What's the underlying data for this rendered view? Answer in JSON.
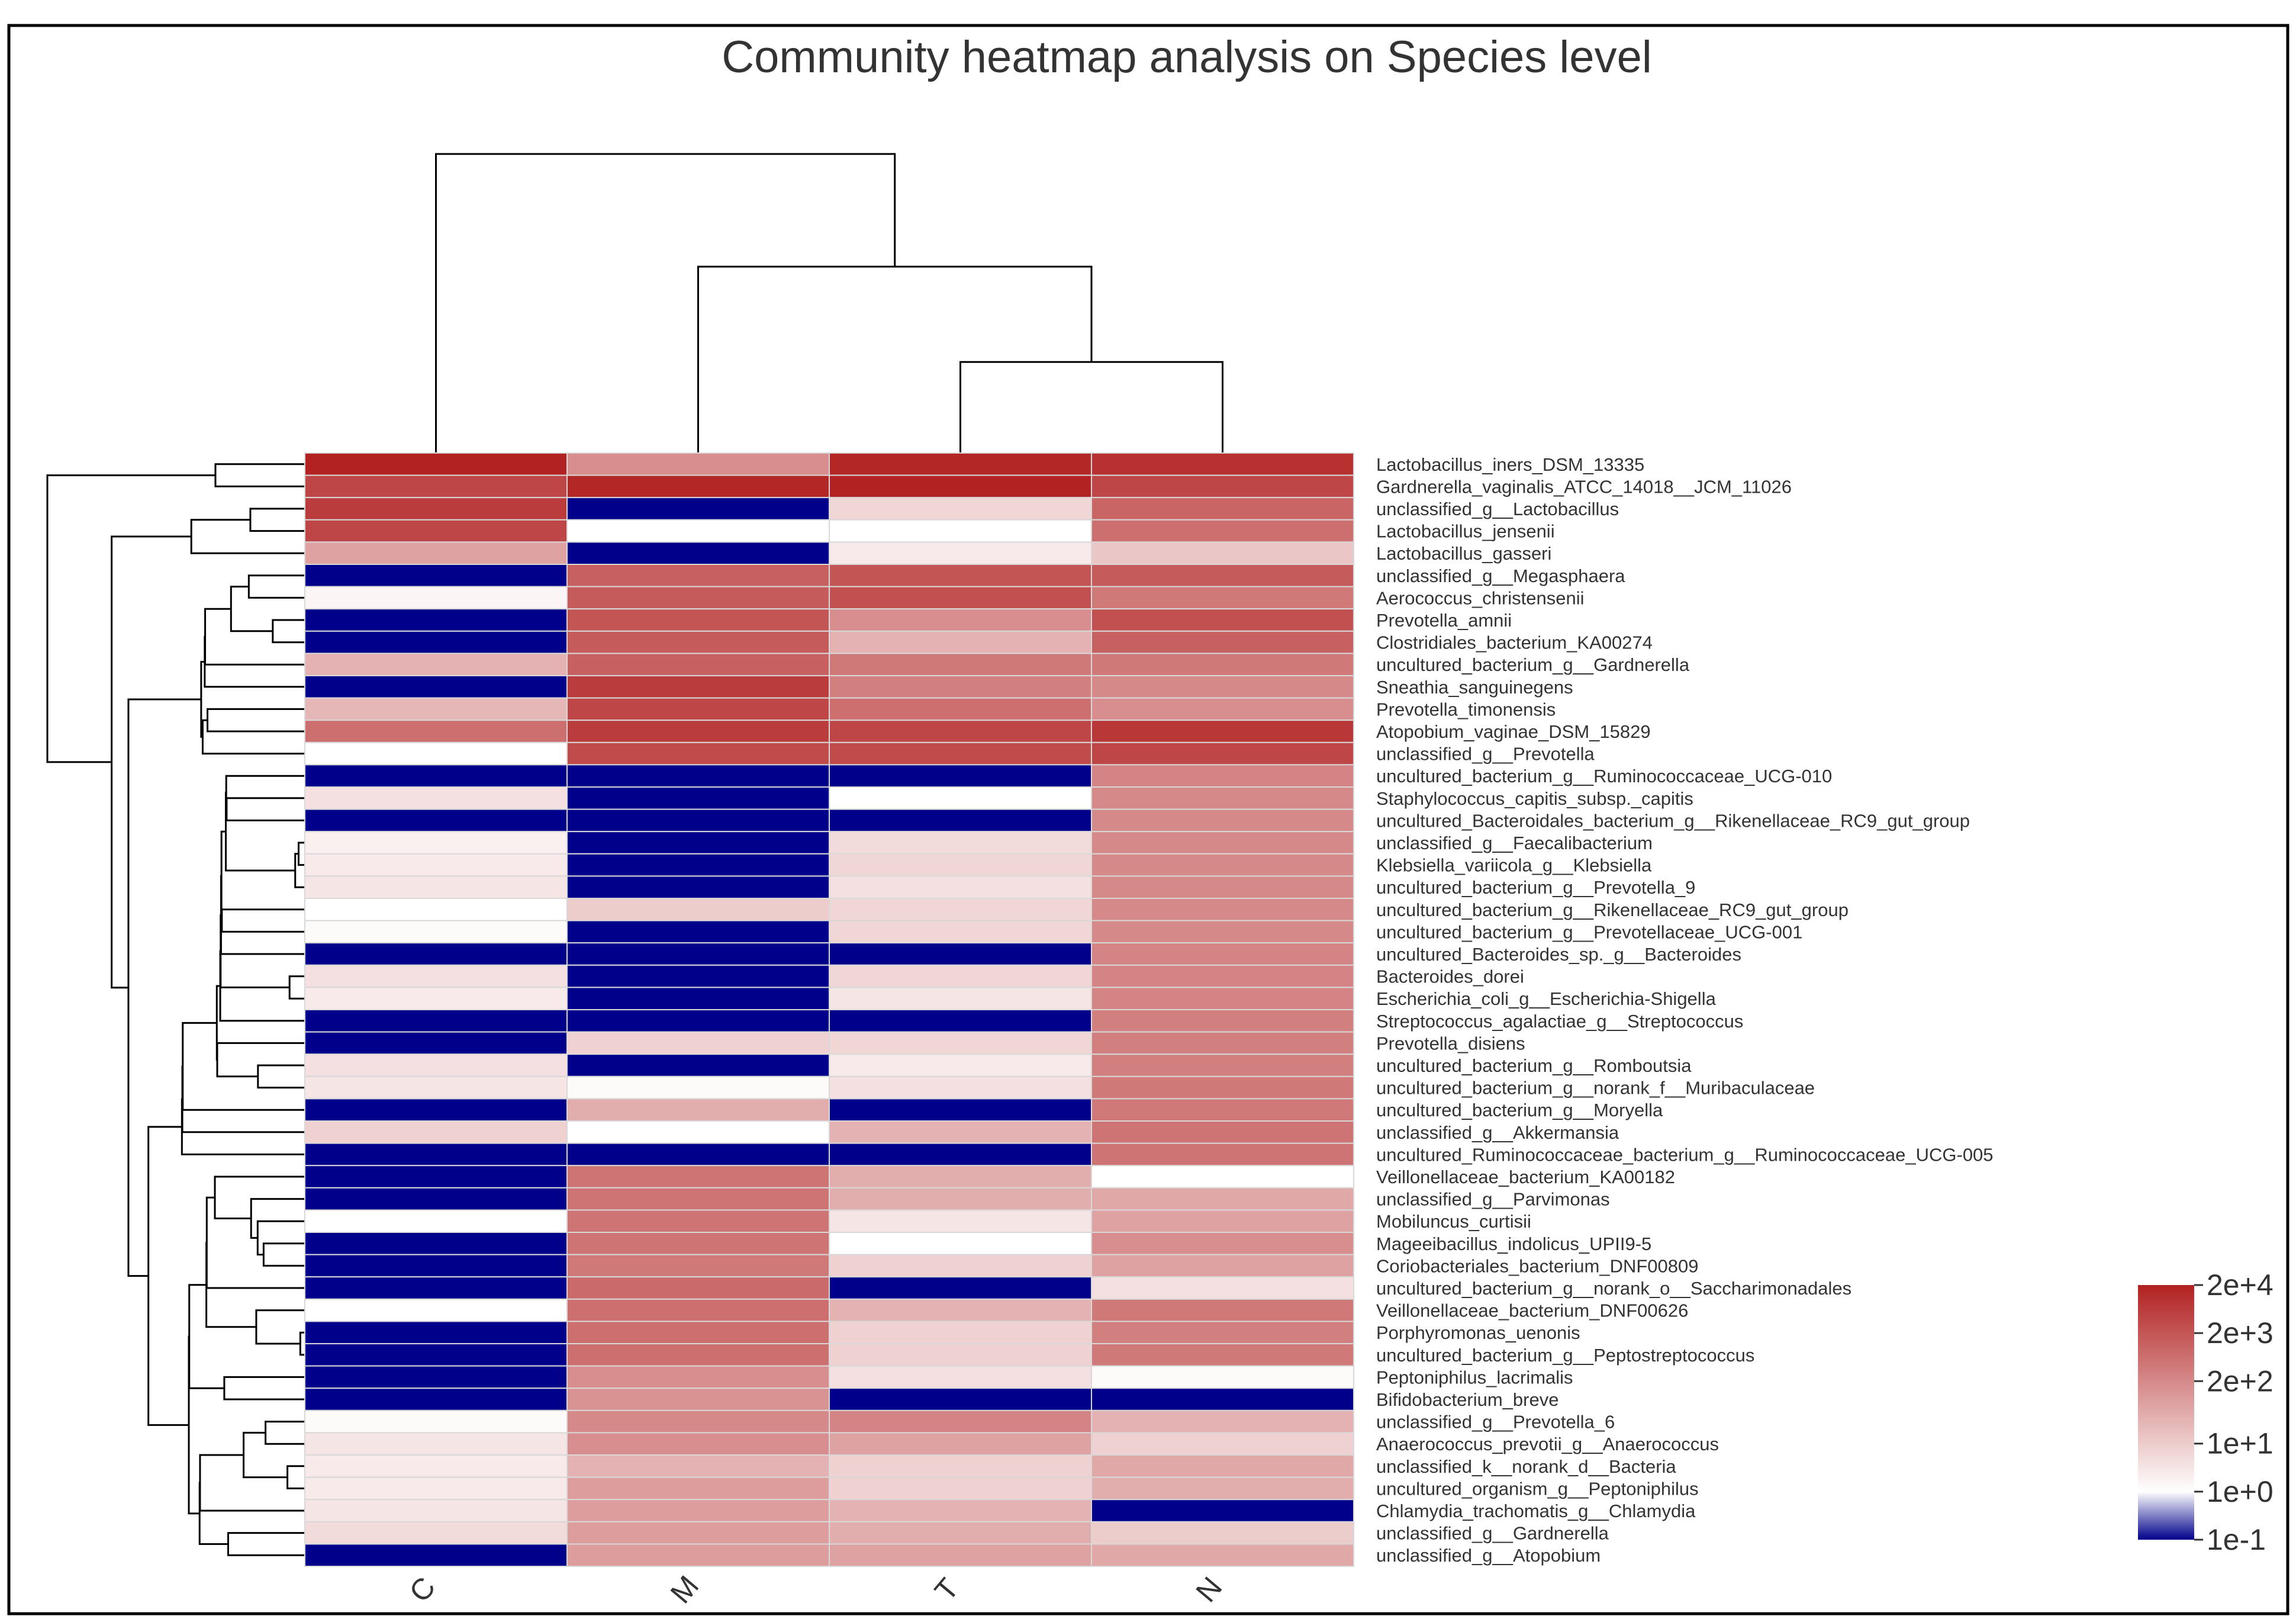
{
  "chart_data": {
    "type": "heatmap",
    "title": "Community heatmap analysis on Species level",
    "columns": [
      "C",
      "M",
      "T",
      "N"
    ],
    "rows": [
      "Lactobacillus_iners_DSM_13335",
      "Gardnerella_vaginalis_ATCC_14018__JCM_11026",
      "unclassified_g__Lactobacillus",
      "Lactobacillus_jensenii",
      "Lactobacillus_gasseri",
      "unclassified_g__Megasphaera",
      "Aerococcus_christensenii",
      "Prevotella_amnii",
      "Clostridiales_bacterium_KA00274",
      "uncultured_bacterium_g__Gardnerella",
      "Sneathia_sanguinegens",
      "Prevotella_timonensis",
      "Atopobium_vaginae_DSM_15829",
      "unclassified_g__Prevotella",
      "uncultured_bacterium_g__Ruminococcaceae_UCG-010",
      "Staphylococcus_capitis_subsp._capitis",
      "uncultured_Bacteroidales_bacterium_g__Rikenellaceae_RC9_gut_group",
      "unclassified_g__Faecalibacterium",
      "Klebsiella_variicola_g__Klebsiella",
      "uncultured_bacterium_g__Prevotella_9",
      "uncultured_bacterium_g__Rikenellaceae_RC9_gut_group",
      "uncultured_bacterium_g__Prevotellaceae_UCG-001",
      "uncultured_Bacteroides_sp._g__Bacteroides",
      "Bacteroides_dorei",
      "Escherichia_coli_g__Escherichia-Shigella",
      "Streptococcus_agalactiae_g__Streptococcus",
      "Prevotella_disiens",
      "uncultured_bacterium_g__Romboutsia",
      "uncultured_bacterium_g__norank_f__Muribaculaceae",
      "uncultured_bacterium_g__Moryella",
      "unclassified_g__Akkermansia",
      "uncultured_Ruminococcaceae_bacterium_g__Ruminococcaceae_UCG-005",
      "Veillonellaceae_bacterium_KA00182",
      "unclassified_g__Parvimonas",
      "Mobiluncus_curtisii",
      "Mageeibacillus_indolicus_UPII9-5",
      "Coriobacteriales_bacterium_DNF00809",
      "uncultured_bacterium_g__norank_o__Saccharimonadales",
      "Veillonellaceae_bacterium_DNF00626",
      "Porphyromonas_uenonis",
      "uncultured_bacterium_g__Peptostreptococcus",
      "Peptoniphilus_lacrimalis",
      "Bifidobacterium_breve",
      "unclassified_g__Prevotella_6",
      "Anaerococcus_prevotii_g__Anaerococcus",
      "unclassified_k__norank_d__Bacteria",
      "uncultured_organism_g__Peptoniphilus",
      "Chlamydia_trachomatis_g__Chlamydia",
      "unclassified_g__Gardnerella",
      "unclassified_g__Atopobium"
    ],
    "value_scale": "log10 abundance (color = log10 of value)",
    "log10_values": [
      [
        4.3,
        2.2,
        4.2,
        4.0
      ],
      [
        3.6,
        4.2,
        4.3,
        3.6
      ],
      [
        3.8,
        -1.0,
        0.8,
        3.0
      ],
      [
        3.6,
        0.0,
        0.0,
        2.8
      ],
      [
        1.8,
        -1.0,
        0.4,
        1.1
      ],
      [
        -1.0,
        3.1,
        3.3,
        3.2
      ],
      [
        0.2,
        3.2,
        3.4,
        2.6
      ],
      [
        -1.0,
        3.3,
        2.2,
        3.4
      ],
      [
        -1.0,
        3.2,
        1.5,
        3.1
      ],
      [
        1.5,
        3.1,
        2.6,
        2.6
      ],
      [
        -1.0,
        3.8,
        2.5,
        2.3
      ],
      [
        1.4,
        3.6,
        2.8,
        2.2
      ],
      [
        2.8,
        3.8,
        3.6,
        3.9
      ],
      [
        0.0,
        3.5,
        3.5,
        3.6
      ],
      [
        -1.0,
        -1.0,
        -1.0,
        2.4
      ],
      [
        0.6,
        -1.0,
        0.0,
        2.3
      ],
      [
        -1.0,
        -1.0,
        -1.0,
        2.3
      ],
      [
        0.3,
        -1.0,
        0.7,
        2.3
      ],
      [
        0.4,
        -1.0,
        0.8,
        2.3
      ],
      [
        0.5,
        -1.0,
        0.6,
        2.3
      ],
      [
        0.0,
        1.0,
        0.8,
        2.3
      ],
      [
        0.1,
        -1.0,
        0.8,
        2.3
      ],
      [
        -1.0,
        -1.0,
        -1.0,
        2.4
      ],
      [
        0.6,
        -1.0,
        0.8,
        2.4
      ],
      [
        0.4,
        -1.0,
        0.5,
        2.4
      ],
      [
        -1.0,
        -1.0,
        -1.0,
        2.5
      ],
      [
        -1.0,
        0.9,
        0.8,
        2.5
      ],
      [
        0.6,
        -1.0,
        0.4,
        2.5
      ],
      [
        0.5,
        0.1,
        0.6,
        2.6
      ],
      [
        -1.0,
        1.6,
        -1.0,
        2.6
      ],
      [
        0.9,
        0.0,
        1.5,
        2.7
      ],
      [
        -1.0,
        -1.0,
        -1.0,
        2.7
      ],
      [
        -1.0,
        2.7,
        1.6,
        0.0
      ],
      [
        -1.0,
        2.7,
        1.6,
        1.7
      ],
      [
        0.0,
        2.7,
        0.5,
        1.8
      ],
      [
        -1.0,
        2.7,
        0.0,
        2.2
      ],
      [
        -1.0,
        2.6,
        0.9,
        1.8
      ],
      [
        -1.0,
        2.9,
        -1.0,
        0.6
      ],
      [
        0.0,
        2.8,
        1.5,
        2.6
      ],
      [
        -1.0,
        2.8,
        0.9,
        2.5
      ],
      [
        -1.0,
        2.8,
        0.9,
        2.6
      ],
      [
        -1.0,
        2.2,
        0.6,
        0.1
      ],
      [
        -1.0,
        2.1,
        -1.0,
        -1.0
      ],
      [
        0.1,
        2.3,
        2.4,
        1.5
      ],
      [
        0.5,
        2.2,
        1.8,
        0.9
      ],
      [
        0.4,
        1.5,
        0.9,
        1.7
      ],
      [
        0.4,
        1.9,
        0.9,
        1.6
      ],
      [
        0.5,
        1.9,
        1.5,
        -1.0
      ],
      [
        0.7,
        1.9,
        1.6,
        1.0
      ],
      [
        -1.0,
        1.9,
        1.8,
        1.7
      ]
    ],
    "column_dendrogram": {
      "merges": [
        [
          "T",
          "N",
          0.21
        ],
        [
          "M",
          "TN",
          0.43
        ],
        [
          "C",
          "MTN",
          0.69
        ]
      ]
    },
    "colorbar": {
      "colors": [
        "#00008b",
        "#ffffff",
        "#b22222"
      ],
      "log10_range": [
        -1,
        4.3
      ],
      "tick_labels": [
        "2e+4",
        "2e+3",
        "2e+2",
        "1e+1",
        "1e+0",
        "1e-1"
      ],
      "tick_log10_values": [
        4.3,
        3.3,
        2.3,
        1.0,
        0.0,
        -1.0
      ]
    },
    "legend_position": "bottom-right"
  }
}
